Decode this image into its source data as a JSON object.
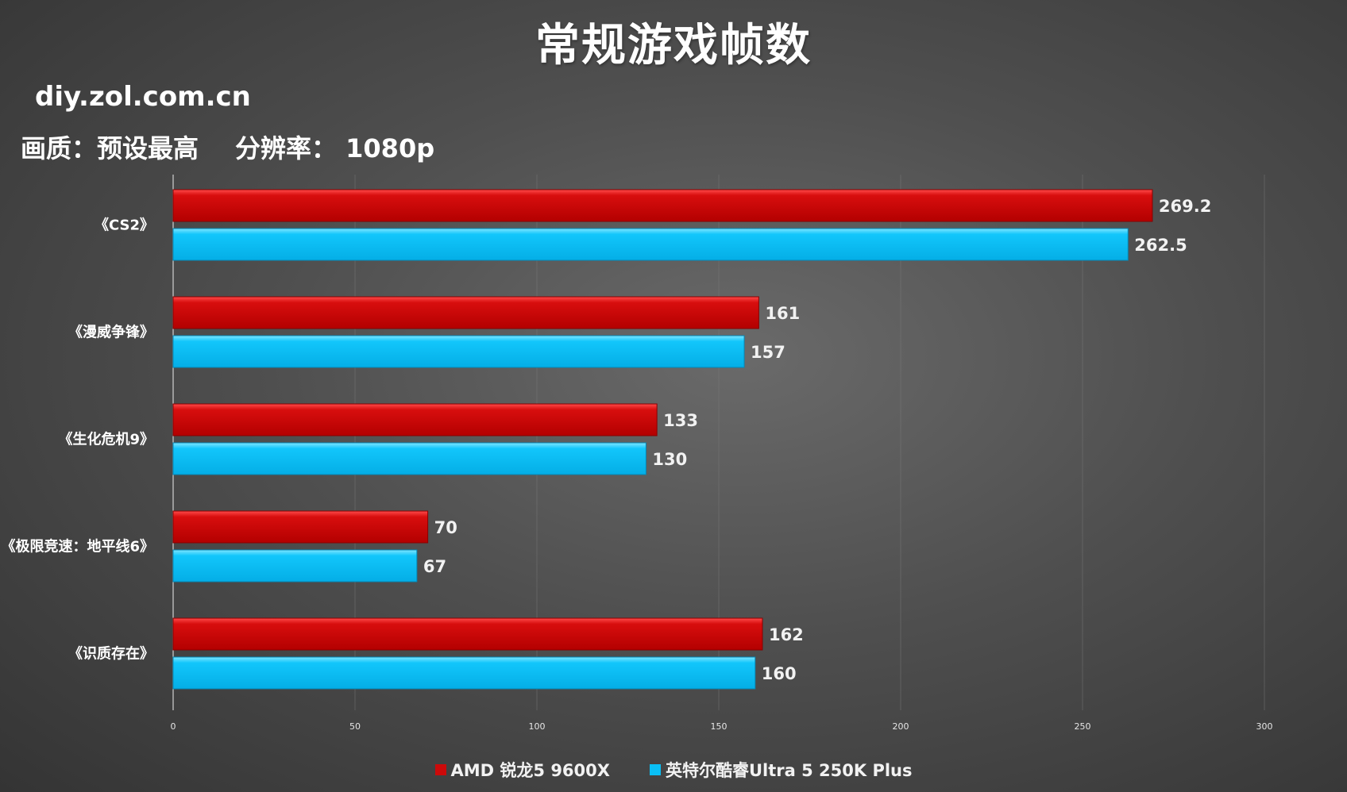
{
  "title": "常规游戏帧数",
  "source": "diy.zol.com.cn",
  "settings": {
    "quality": "画质：预设最高",
    "resolution": "分辨率： 1080p"
  },
  "colors": {
    "series_a": "#cc0a0a",
    "series_b": "#0abff5",
    "grid": "#7a7a7a",
    "axis": "#d0d0d0"
  },
  "chart_data": {
    "type": "bar",
    "orientation": "horizontal",
    "categories": [
      "《CS2》",
      "《漫威争锋》",
      "《生化危机9》",
      "《极限竞速：地平线6》",
      "《识质存在》"
    ],
    "series": [
      {
        "name": "AMD 锐龙5 9600X",
        "values": [
          269.2,
          161,
          133,
          70,
          162
        ],
        "labels": [
          "269.2",
          "161",
          "133",
          "70",
          "162"
        ]
      },
      {
        "name": "英特尔酷睿Ultra 5 250K Plus",
        "values": [
          262.5,
          157,
          130,
          67,
          160
        ],
        "labels": [
          "262.5",
          "157",
          "130",
          "67",
          "160"
        ]
      }
    ],
    "xlim": [
      0,
      300
    ],
    "xticks": [
      "0",
      "50",
      "100",
      "150",
      "200",
      "250",
      "300"
    ],
    "grid": true,
    "legend_position": "bottom"
  }
}
